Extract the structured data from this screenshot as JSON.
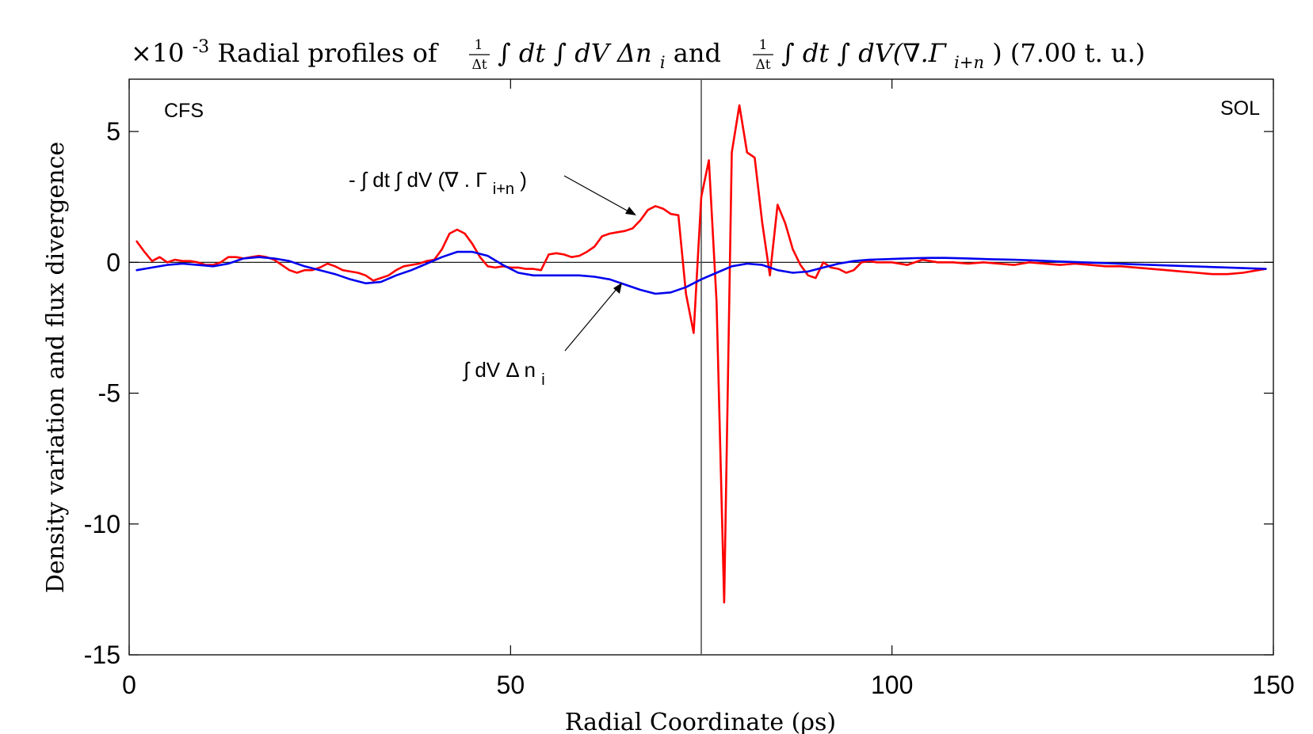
{
  "chart_data": {
    "type": "line",
    "title": {
      "scale": "×10",
      "exponent": "-3",
      "text": "Radial profiles of 1/Δt ∫ dt ∫ dV Δn_i and 1/Δt ∫ dt ∫ dV (∇.Γ_i+n) (7.00 t. u.)",
      "part1": "Radial profiles of ",
      "frac_num": "1",
      "frac_den": "Δt",
      "int_expr1": "∫ dt ∫ dV Δn",
      "sub1": "i",
      "and": " and ",
      "int_expr2": "∫ dt ∫ dV(∇.Γ",
      "sub2": "i+n",
      "tail": ") (7.00 t. u.)"
    },
    "xlabel": "Radial Coordinate (ρs)",
    "ylabel": "Density variation and flux divergence",
    "xlim": [
      0,
      150
    ],
    "ylim": [
      -15,
      7
    ],
    "x_ticks": [
      0,
      50,
      100,
      150
    ],
    "x_tick_labels": [
      "0",
      "50",
      "100",
      "150"
    ],
    "y_ticks": [
      5,
      0,
      -5,
      -10,
      -15
    ],
    "y_tick_labels": [
      "5",
      "0",
      "-5",
      "-10",
      "-15"
    ],
    "grid": false,
    "vertical_line_x": 75,
    "region_labels": [
      "CFS",
      "SOL"
    ],
    "annotations": [
      {
        "label": "- ∫ dt ∫ dV (∇ . Γ",
        "sub": "i+n",
        "close": ")",
        "series": "red"
      },
      {
        "label": "∫ dV Δ n",
        "sub": "i",
        "series": "blue"
      }
    ],
    "colors": {
      "red": "#ff0000",
      "blue": "#0000ee",
      "axis": "#000000",
      "vline": "#555555"
    },
    "series": [
      {
        "color": "#ff0000",
        "x": [
          1,
          2,
          3,
          4,
          5,
          6,
          7,
          8,
          9,
          10,
          11,
          12,
          13,
          14,
          15,
          16,
          17,
          18,
          19,
          20,
          21,
          22,
          23,
          24,
          25,
          26,
          27,
          28,
          29,
          30,
          31,
          32,
          33,
          34,
          35,
          36,
          37,
          38,
          39,
          40,
          41,
          42,
          43,
          44,
          45,
          46,
          47,
          48,
          49,
          50,
          51,
          52,
          53,
          54,
          55,
          56,
          57,
          58,
          59,
          60,
          61,
          62,
          63,
          64,
          65,
          66,
          67,
          68,
          69,
          70,
          71,
          72,
          73,
          74,
          75,
          76,
          77,
          78,
          79,
          80,
          81,
          82,
          83,
          84,
          85,
          86,
          87,
          88,
          89,
          90,
          91,
          92,
          93,
          94,
          95,
          96,
          97,
          98,
          100,
          102,
          104,
          106,
          108,
          110,
          112,
          114,
          116,
          118,
          120,
          122,
          124,
          126,
          128,
          130,
          132,
          134,
          136,
          138,
          140,
          142,
          144,
          146,
          148,
          149
        ],
        "y": [
          0.8,
          0.4,
          0.05,
          0.2,
          0.0,
          0.1,
          0.05,
          0.05,
          0.0,
          -0.1,
          -0.1,
          0.0,
          0.2,
          0.2,
          0.15,
          0.2,
          0.25,
          0.2,
          0.1,
          -0.1,
          -0.3,
          -0.4,
          -0.3,
          -0.3,
          -0.2,
          -0.05,
          -0.15,
          -0.3,
          -0.35,
          -0.4,
          -0.5,
          -0.7,
          -0.6,
          -0.5,
          -0.3,
          -0.15,
          -0.1,
          -0.05,
          0.05,
          0.1,
          0.5,
          1.1,
          1.25,
          1.1,
          0.7,
          0.2,
          -0.15,
          -0.2,
          -0.15,
          -0.2,
          -0.2,
          -0.25,
          -0.25,
          -0.3,
          0.3,
          0.35,
          0.3,
          0.2,
          0.25,
          0.4,
          0.6,
          1.0,
          1.1,
          1.15,
          1.2,
          1.3,
          1.6,
          2.0,
          2.15,
          2.05,
          1.85,
          1.8,
          -1.2,
          -2.7,
          2.5,
          3.9,
          -1.5,
          -13.0,
          4.2,
          6.0,
          4.2,
          4.0,
          1.5,
          -0.5,
          2.2,
          1.5,
          0.5,
          -0.1,
          -0.5,
          -0.6,
          0.0,
          -0.2,
          -0.25,
          -0.4,
          -0.3,
          0.0,
          0.05,
          0.0,
          0.0,
          -0.1,
          0.1,
          0.0,
          0.0,
          -0.05,
          0.0,
          -0.05,
          -0.1,
          0.0,
          -0.05,
          -0.1,
          -0.05,
          -0.1,
          -0.15,
          -0.15,
          -0.2,
          -0.25,
          -0.3,
          -0.35,
          -0.4,
          -0.45,
          -0.45,
          -0.4,
          -0.3,
          -0.25
        ]
      },
      {
        "color": "#0000ee",
        "x": [
          1,
          3,
          5,
          7,
          9,
          11,
          13,
          15,
          17,
          19,
          21,
          23,
          25,
          27,
          29,
          31,
          33,
          35,
          37,
          39,
          41,
          43,
          45,
          47,
          49,
          51,
          53,
          55,
          57,
          59,
          61,
          63,
          65,
          67,
          69,
          71,
          73,
          75,
          77,
          79,
          81,
          83,
          85,
          87,
          89,
          91,
          93,
          95,
          97,
          99,
          101,
          103,
          105,
          107,
          110,
          113,
          116,
          119,
          122,
          125,
          128,
          131,
          134,
          137,
          140,
          143,
          146,
          149
        ],
        "y": [
          -0.3,
          -0.2,
          -0.1,
          -0.05,
          -0.1,
          -0.15,
          -0.05,
          0.15,
          0.2,
          0.15,
          0.05,
          -0.15,
          -0.3,
          -0.45,
          -0.65,
          -0.8,
          -0.75,
          -0.5,
          -0.3,
          -0.05,
          0.2,
          0.4,
          0.4,
          0.25,
          -0.1,
          -0.4,
          -0.5,
          -0.5,
          -0.5,
          -0.5,
          -0.55,
          -0.65,
          -0.85,
          -1.05,
          -1.2,
          -1.15,
          -0.95,
          -0.65,
          -0.4,
          -0.15,
          -0.05,
          -0.1,
          -0.3,
          -0.4,
          -0.35,
          -0.2,
          -0.05,
          0.05,
          0.1,
          0.12,
          0.14,
          0.16,
          0.17,
          0.17,
          0.15,
          0.12,
          0.1,
          0.07,
          0.03,
          0.0,
          -0.03,
          -0.07,
          -0.1,
          -0.13,
          -0.16,
          -0.19,
          -0.22,
          -0.25
        ]
      }
    ]
  }
}
